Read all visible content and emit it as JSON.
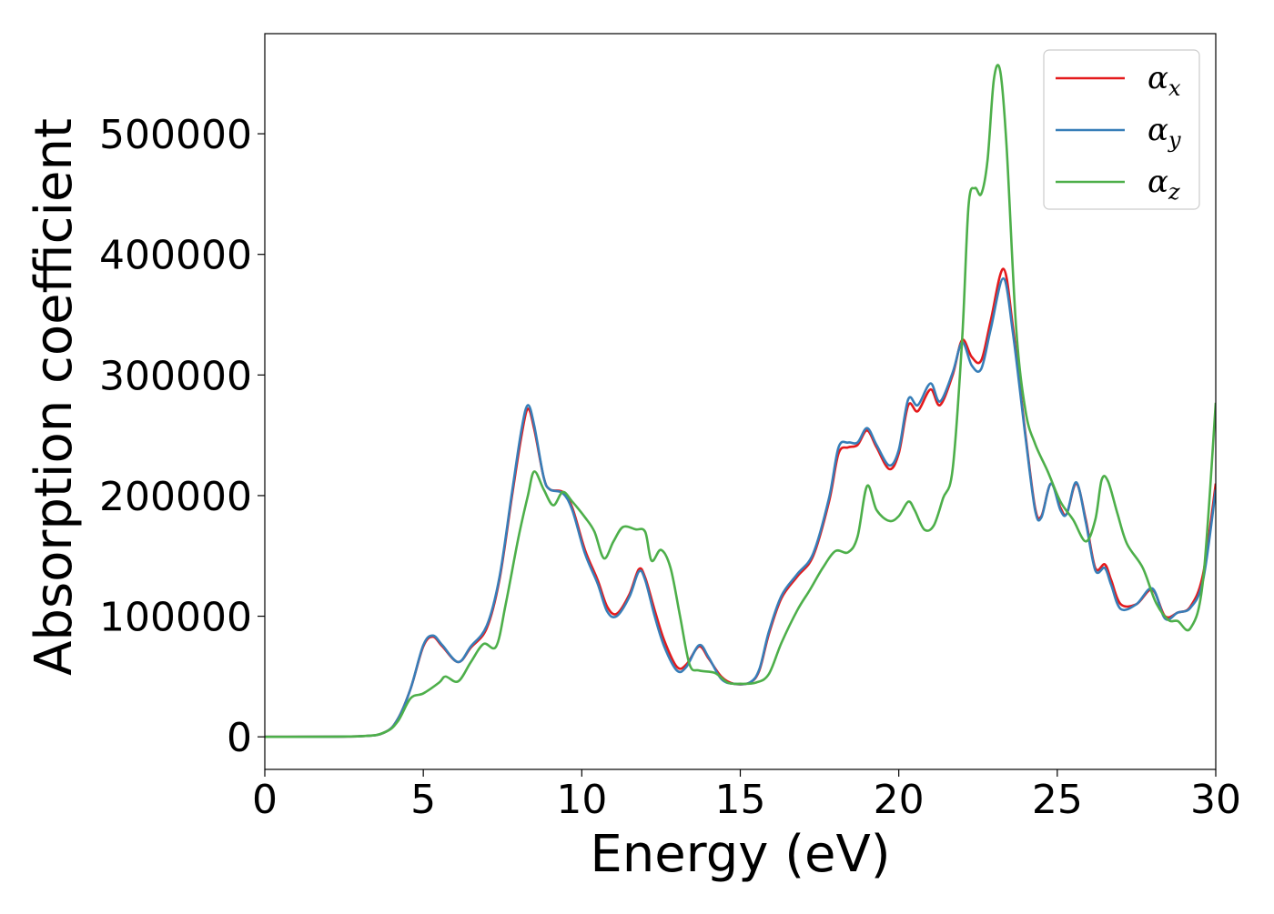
{
  "chart_data": {
    "type": "line",
    "xlabel": "Energy (eV)",
    "ylabel": "Absorption coefficient",
    "xlim": [
      0,
      30
    ],
    "ylim": [
      -27000,
      583000
    ],
    "x_ticks": [
      0,
      5,
      10,
      15,
      20,
      25,
      30
    ],
    "x_tick_labels": [
      "0",
      "5",
      "10",
      "15",
      "20",
      "25",
      "30"
    ],
    "y_ticks": [
      0,
      100000,
      200000,
      300000,
      400000,
      500000
    ],
    "y_tick_labels": [
      "0",
      "100000",
      "200000",
      "300000",
      "400000",
      "500000"
    ],
    "grid": false,
    "legend_position": "top-right",
    "series": [
      {
        "name": "αx",
        "legend_base": "α",
        "legend_sub": "x",
        "color": "#e41a1c",
        "points": [
          [
            0,
            0
          ],
          [
            3,
            500
          ],
          [
            3.8,
            4000
          ],
          [
            4.2,
            15000
          ],
          [
            4.6,
            40000
          ],
          [
            5.0,
            75000
          ],
          [
            5.3,
            83000
          ],
          [
            5.6,
            75000
          ],
          [
            6.1,
            62000
          ],
          [
            6.5,
            74000
          ],
          [
            7.0,
            90000
          ],
          [
            7.4,
            130000
          ],
          [
            7.8,
            200000
          ],
          [
            8.1,
            250000
          ],
          [
            8.3,
            272000
          ],
          [
            8.5,
            255000
          ],
          [
            8.8,
            215000
          ],
          [
            9.0,
            205000
          ],
          [
            9.4,
            203000
          ],
          [
            9.7,
            190000
          ],
          [
            10.1,
            155000
          ],
          [
            10.5,
            130000
          ],
          [
            10.8,
            108000
          ],
          [
            11.1,
            102000
          ],
          [
            11.5,
            118000
          ],
          [
            11.8,
            139000
          ],
          [
            12.0,
            132000
          ],
          [
            12.3,
            105000
          ],
          [
            12.6,
            80000
          ],
          [
            13.0,
            58000
          ],
          [
            13.3,
            60000
          ],
          [
            13.7,
            75000
          ],
          [
            14.0,
            65000
          ],
          [
            14.4,
            50000
          ],
          [
            14.8,
            44000
          ],
          [
            15.3,
            45000
          ],
          [
            15.6,
            55000
          ],
          [
            15.9,
            85000
          ],
          [
            16.3,
            115000
          ],
          [
            16.8,
            133000
          ],
          [
            17.3,
            150000
          ],
          [
            17.8,
            195000
          ],
          [
            18.1,
            235000
          ],
          [
            18.4,
            240000
          ],
          [
            18.7,
            242000
          ],
          [
            19.0,
            254000
          ],
          [
            19.3,
            240000
          ],
          [
            19.7,
            222000
          ],
          [
            20.0,
            235000
          ],
          [
            20.3,
            275000
          ],
          [
            20.6,
            270000
          ],
          [
            21.0,
            288000
          ],
          [
            21.3,
            275000
          ],
          [
            21.7,
            300000
          ],
          [
            22.0,
            329000
          ],
          [
            22.3,
            315000
          ],
          [
            22.6,
            312000
          ],
          [
            22.9,
            345000
          ],
          [
            23.3,
            388000
          ],
          [
            23.6,
            340000
          ],
          [
            24.0,
            250000
          ],
          [
            24.3,
            190000
          ],
          [
            24.5,
            183000
          ],
          [
            24.8,
            210000
          ],
          [
            25.1,
            190000
          ],
          [
            25.3,
            185000
          ],
          [
            25.6,
            210000
          ],
          [
            25.9,
            180000
          ],
          [
            26.2,
            140000
          ],
          [
            26.5,
            143000
          ],
          [
            26.7,
            130000
          ],
          [
            27.0,
            110000
          ],
          [
            27.5,
            110000
          ],
          [
            28.0,
            122000
          ],
          [
            28.4,
            100000
          ],
          [
            28.8,
            103000
          ],
          [
            29.2,
            108000
          ],
          [
            29.6,
            135000
          ],
          [
            30.0,
            210000
          ]
        ]
      },
      {
        "name": "αy",
        "legend_base": "α",
        "legend_sub": "y",
        "color": "#377eb8",
        "points": [
          [
            0,
            0
          ],
          [
            3,
            500
          ],
          [
            3.8,
            4000
          ],
          [
            4.2,
            15000
          ],
          [
            4.6,
            40000
          ],
          [
            5.0,
            76000
          ],
          [
            5.3,
            84000
          ],
          [
            5.6,
            76000
          ],
          [
            6.1,
            62000
          ],
          [
            6.5,
            75000
          ],
          [
            7.0,
            92000
          ],
          [
            7.4,
            132000
          ],
          [
            7.8,
            203000
          ],
          [
            8.1,
            255000
          ],
          [
            8.3,
            275000
          ],
          [
            8.5,
            258000
          ],
          [
            8.8,
            215000
          ],
          [
            9.0,
            205000
          ],
          [
            9.4,
            202000
          ],
          [
            9.7,
            188000
          ],
          [
            10.1,
            152000
          ],
          [
            10.5,
            127000
          ],
          [
            10.8,
            104000
          ],
          [
            11.1,
            100000
          ],
          [
            11.5,
            116000
          ],
          [
            11.8,
            137000
          ],
          [
            12.0,
            130000
          ],
          [
            12.3,
            100000
          ],
          [
            12.6,
            75000
          ],
          [
            13.0,
            55000
          ],
          [
            13.3,
            58000
          ],
          [
            13.7,
            76000
          ],
          [
            14.0,
            66000
          ],
          [
            14.4,
            48000
          ],
          [
            14.8,
            44000
          ],
          [
            15.3,
            45000
          ],
          [
            15.6,
            56000
          ],
          [
            15.9,
            87000
          ],
          [
            16.3,
            117000
          ],
          [
            16.8,
            135000
          ],
          [
            17.3,
            152000
          ],
          [
            17.8,
            198000
          ],
          [
            18.1,
            240000
          ],
          [
            18.4,
            244000
          ],
          [
            18.7,
            244000
          ],
          [
            19.0,
            256000
          ],
          [
            19.3,
            242000
          ],
          [
            19.7,
            225000
          ],
          [
            20.0,
            238000
          ],
          [
            20.3,
            280000
          ],
          [
            20.6,
            275000
          ],
          [
            21.0,
            293000
          ],
          [
            21.3,
            278000
          ],
          [
            21.7,
            302000
          ],
          [
            22.0,
            327000
          ],
          [
            22.3,
            308000
          ],
          [
            22.6,
            305000
          ],
          [
            22.9,
            338000
          ],
          [
            23.3,
            380000
          ],
          [
            23.6,
            335000
          ],
          [
            24.0,
            248000
          ],
          [
            24.3,
            188000
          ],
          [
            24.5,
            182000
          ],
          [
            24.8,
            210000
          ],
          [
            25.1,
            188000
          ],
          [
            25.3,
            185000
          ],
          [
            25.6,
            211000
          ],
          [
            25.9,
            178000
          ],
          [
            26.2,
            138000
          ],
          [
            26.5,
            140000
          ],
          [
            26.7,
            126000
          ],
          [
            27.0,
            106000
          ],
          [
            27.5,
            110000
          ],
          [
            28.0,
            123000
          ],
          [
            28.4,
            98000
          ],
          [
            28.8,
            103000
          ],
          [
            29.2,
            107000
          ],
          [
            29.6,
            130000
          ],
          [
            30.0,
            205000
          ]
        ]
      },
      {
        "name": "αz",
        "legend_base": "α",
        "legend_sub": "z",
        "color": "#4daf4a",
        "points": [
          [
            0,
            0
          ],
          [
            3,
            500
          ],
          [
            3.8,
            4000
          ],
          [
            4.2,
            13000
          ],
          [
            4.6,
            32000
          ],
          [
            5.0,
            36000
          ],
          [
            5.5,
            45000
          ],
          [
            5.7,
            50000
          ],
          [
            6.1,
            46000
          ],
          [
            6.5,
            62000
          ],
          [
            6.9,
            77000
          ],
          [
            7.3,
            75000
          ],
          [
            7.6,
            110000
          ],
          [
            8.0,
            165000
          ],
          [
            8.3,
            200000
          ],
          [
            8.5,
            220000
          ],
          [
            8.8,
            205000
          ],
          [
            9.1,
            192000
          ],
          [
            9.4,
            203000
          ],
          [
            9.7,
            195000
          ],
          [
            10.1,
            182000
          ],
          [
            10.4,
            170000
          ],
          [
            10.7,
            148000
          ],
          [
            11.0,
            162000
          ],
          [
            11.3,
            174000
          ],
          [
            11.7,
            172000
          ],
          [
            12.0,
            170000
          ],
          [
            12.2,
            146000
          ],
          [
            12.5,
            155000
          ],
          [
            12.8,
            140000
          ],
          [
            13.1,
            100000
          ],
          [
            13.4,
            60000
          ],
          [
            13.7,
            55000
          ],
          [
            14.2,
            53000
          ],
          [
            14.6,
            45000
          ],
          [
            15.0,
            44000
          ],
          [
            15.5,
            45000
          ],
          [
            15.9,
            52000
          ],
          [
            16.3,
            78000
          ],
          [
            16.8,
            105000
          ],
          [
            17.2,
            122000
          ],
          [
            17.6,
            140000
          ],
          [
            18.0,
            154000
          ],
          [
            18.4,
            153000
          ],
          [
            18.7,
            166000
          ],
          [
            19.0,
            208000
          ],
          [
            19.3,
            188000
          ],
          [
            19.7,
            179000
          ],
          [
            20.0,
            183000
          ],
          [
            20.3,
            195000
          ],
          [
            20.5,
            188000
          ],
          [
            20.8,
            172000
          ],
          [
            21.1,
            175000
          ],
          [
            21.4,
            198000
          ],
          [
            21.7,
            222000
          ],
          [
            22.0,
            330000
          ],
          [
            22.2,
            440000
          ],
          [
            22.4,
            455000
          ],
          [
            22.6,
            450000
          ],
          [
            22.8,
            478000
          ],
          [
            23.0,
            545000
          ],
          [
            23.2,
            552000
          ],
          [
            23.4,
            490000
          ],
          [
            23.7,
            340000
          ],
          [
            24.0,
            270000
          ],
          [
            24.3,
            243000
          ],
          [
            24.7,
            220000
          ],
          [
            25.1,
            195000
          ],
          [
            25.5,
            180000
          ],
          [
            25.9,
            162000
          ],
          [
            26.2,
            180000
          ],
          [
            26.4,
            213000
          ],
          [
            26.6,
            212000
          ],
          [
            26.9,
            185000
          ],
          [
            27.2,
            160000
          ],
          [
            27.7,
            140000
          ],
          [
            28.1,
            112000
          ],
          [
            28.5,
            97000
          ],
          [
            28.8,
            96000
          ],
          [
            29.2,
            90000
          ],
          [
            29.6,
            130000
          ],
          [
            30.0,
            277000
          ]
        ]
      }
    ]
  }
}
